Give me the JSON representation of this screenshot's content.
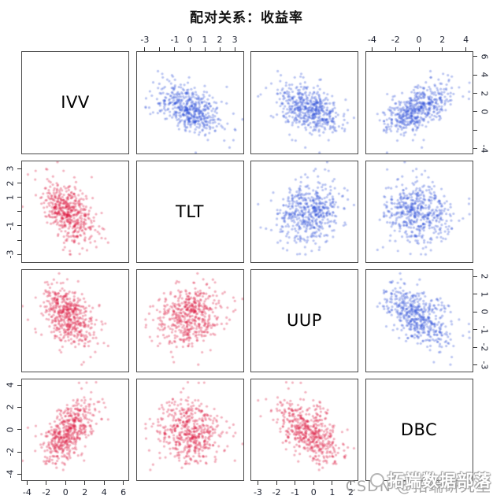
{
  "title": "配对关系：收益率",
  "watermark": {
    "csdn": "CSDN @拓端研究室",
    "brand": "拓端数据部落"
  },
  "colors": {
    "upper_points": "#2f4ed8",
    "lower_points": "#dc143c",
    "panel_border": "#4a4a4a",
    "tick": "#333333",
    "tick_label": "#1d2230",
    "title": "#111111",
    "watermark_grey": "#919191"
  },
  "chart_data": {
    "type": "scatter",
    "subtype": "scatterplot-matrix",
    "title": "配对关系：收益率",
    "n_points": 500,
    "seed": 7,
    "point_radius": 1.6,
    "point_alpha": 0.33,
    "upper_triangle_color": "#2f4ed8",
    "lower_triangle_color": "#dc143c",
    "variables": [
      {
        "name": "IVV",
        "usr": [
          -4.6,
          6.6
        ],
        "mean": 0.3,
        "sd": 1.35
      },
      {
        "name": "TLT",
        "usr": [
          -3.6,
          3.6
        ],
        "mean": 0.05,
        "sd": 1.05
      },
      {
        "name": "UUP",
        "usr": [
          -3.4,
          2.4
        ],
        "mean": -0.25,
        "sd": 0.8
      },
      {
        "name": "DBC",
        "usr": [
          -4.6,
          4.6
        ],
        "mean": -0.1,
        "sd": 1.4
      }
    ],
    "correlation_matrix": [
      [
        1.0,
        -0.42,
        -0.38,
        0.55
      ],
      [
        -0.42,
        1.0,
        0.12,
        -0.08
      ],
      [
        -0.38,
        0.12,
        1.0,
        -0.48
      ],
      [
        0.55,
        -0.08,
        -0.48,
        1.0
      ]
    ],
    "axes": [
      {
        "row": 0,
        "col": 1,
        "side": "top",
        "var": "TLT",
        "ticks": [
          -3,
          -2,
          -1,
          0,
          1,
          2,
          3
        ],
        "labels": [
          "-3",
          "",
          "-1",
          "0",
          "1",
          "2",
          "3"
        ]
      },
      {
        "row": 0,
        "col": 3,
        "side": "top",
        "var": "DBC",
        "ticks": [
          -4,
          -2,
          0,
          2,
          4
        ],
        "labels": [
          "-4",
          "-2",
          "0",
          "2",
          "4"
        ]
      },
      {
        "row": 0,
        "col": 3,
        "side": "right",
        "var": "IVV",
        "ticks": [
          -4,
          -2,
          0,
          2,
          4,
          6
        ],
        "labels": [
          "-4",
          "",
          "0",
          "2",
          "4",
          "6"
        ]
      },
      {
        "row": 1,
        "col": 0,
        "side": "left",
        "var": "TLT",
        "ticks": [
          -3,
          -2,
          -1,
          0,
          1,
          2,
          3
        ],
        "labels": [
          "-3",
          "",
          "-1",
          "",
          "1",
          "2",
          "3"
        ]
      },
      {
        "row": 2,
        "col": 3,
        "side": "right",
        "var": "UUP",
        "ticks": [
          -3,
          -2,
          -1,
          0,
          1,
          2
        ],
        "labels": [
          "-3",
          "-2",
          "-1",
          "0",
          "1",
          "2"
        ]
      },
      {
        "row": 3,
        "col": 0,
        "side": "left",
        "var": "DBC",
        "ticks": [
          -4,
          -2,
          0,
          2,
          4
        ],
        "labels": [
          "-4",
          "-2",
          "0",
          "2",
          "4"
        ]
      },
      {
        "row": 3,
        "col": 0,
        "side": "bottom",
        "var": "IVV",
        "ticks": [
          -4,
          -2,
          0,
          2,
          4,
          6
        ],
        "labels": [
          "-4",
          "-2",
          "0",
          "2",
          "4",
          "6"
        ]
      },
      {
        "row": 3,
        "col": 2,
        "side": "bottom",
        "var": "UUP",
        "ticks": [
          -3,
          -2,
          -1,
          0,
          1,
          2
        ],
        "labels": [
          "-3",
          "-2",
          "-1",
          "0",
          "1",
          "2"
        ]
      }
    ]
  }
}
